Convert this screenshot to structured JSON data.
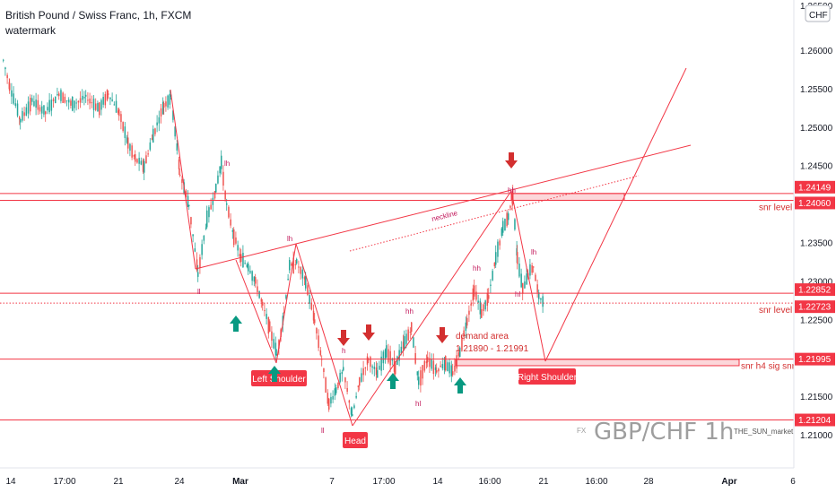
{
  "header": {
    "title": "British Pound / Swiss Franc, 1h, FXCM",
    "subtitle": "watermark"
  },
  "chart_data": {
    "type": "candlestick",
    "currency_label": "CHF",
    "y_ticks": [
      "1.26000",
      "1.25500",
      "1.25000",
      "1.24500",
      "1.24000",
      "1.23500",
      "1.23000",
      "1.22500",
      "1.22000",
      "1.21500",
      "1.21000"
    ],
    "y_top_partial": "1.26500",
    "x_ticks": [
      "14",
      "17:00",
      "21",
      "24",
      "Mar",
      "7",
      "17:00",
      "14",
      "16:00",
      "21",
      "16:00",
      "28",
      "Apr",
      "6"
    ],
    "price_tags": [
      {
        "value": "1.24149",
        "price": 1.24149
      },
      {
        "value": "1.24060",
        "price": 1.2406
      },
      {
        "value": "1.22852",
        "price": 1.22852
      },
      {
        "value": "1.22723",
        "price": 1.22723
      },
      {
        "value": "1.21995",
        "price": 1.21995
      },
      {
        "value": "1.21204",
        "price": 1.21204
      }
    ],
    "levels": [
      {
        "price": 1.24149,
        "label": ""
      },
      {
        "price": 1.2406,
        "label": "snr level"
      },
      {
        "price": 1.22852,
        "label": ""
      },
      {
        "price": 1.22723,
        "label": "snr level"
      },
      {
        "price": 1.21995,
        "label": "snr h4 sig snr"
      },
      {
        "price": 1.21204,
        "label": ""
      }
    ],
    "annotations": {
      "left_shoulder": "Left Shoulder",
      "head": "Head",
      "right_shoulder": "Right Shoulder",
      "neckline": "neckline",
      "demand_area": "demand area",
      "demand_range": "1.21890  -  1.21991",
      "hh": "hh",
      "lh": "lh",
      "hl": "hl",
      "ll": "ll",
      "h": "h",
      "fx": "FX",
      "author": "THE_SUN_market"
    },
    "watermark_symbol": "GBP/CHF 1h",
    "colors": {
      "up": "#26a69a",
      "down": "#ef5350",
      "drawing": "#f23645",
      "tag": "#f23645",
      "arrow_up": "#089981",
      "arrow_down": "#d32f2f"
    }
  }
}
